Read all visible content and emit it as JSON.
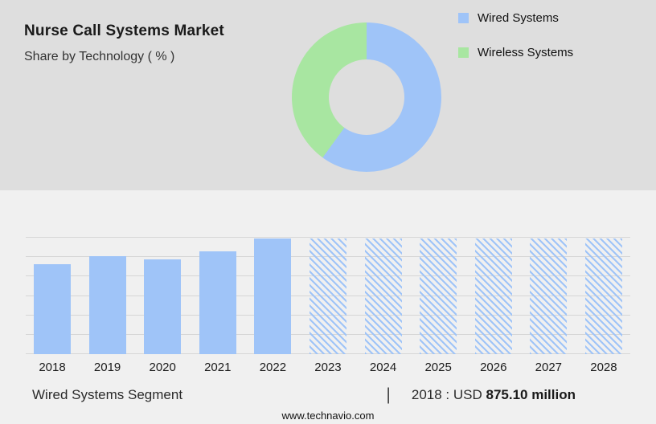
{
  "header": {
    "title": "Nurse Call Systems Market",
    "subtitle": "Share by Technology ( % )"
  },
  "legend": [
    {
      "label": "Wired Systems",
      "color": "#9fc4f8"
    },
    {
      "label": "Wireless Systems",
      "color": "#a8e6a1"
    }
  ],
  "chart_data": [
    {
      "type": "pie",
      "donut": true,
      "title": "Nurse Call Systems Market - Share by Technology ( % )",
      "labels": [
        "Wired Systems",
        "Wireless Systems"
      ],
      "values": [
        60,
        40
      ],
      "colors": [
        "#9fc4f8",
        "#a8e6a1"
      ],
      "legend_position": "right"
    },
    {
      "type": "bar",
      "categories": [
        "2018",
        "2019",
        "2020",
        "2021",
        "2022",
        "2023",
        "2024",
        "2025",
        "2026",
        "2027",
        "2028"
      ],
      "values": [
        78,
        85,
        82,
        89,
        100,
        100,
        100,
        100,
        100,
        100,
        100
      ],
      "bar_color": "#9fc4f8",
      "forecast_start_index": 5,
      "forecast_style": "hatched",
      "ylim": [
        0,
        100
      ],
      "grid": true,
      "xlabel": "",
      "ylabel": ""
    }
  ],
  "footer": {
    "segment_label": "Wired Systems Segment",
    "separator": "|",
    "value_prefix": "2018 : USD",
    "value_bold": "875.10 million",
    "website": "www.technavio.com"
  }
}
